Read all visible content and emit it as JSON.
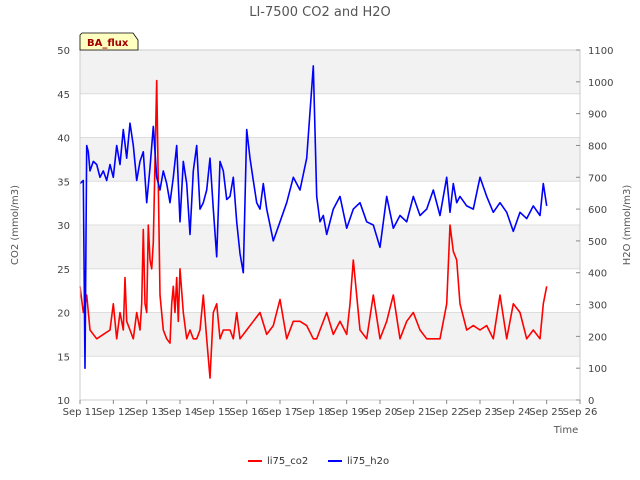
{
  "chart_data": {
    "type": "line",
    "title": "LI-7500 CO2 and H2O",
    "xlabel": "Time",
    "ylabel": "CO2 (mmol/m3)",
    "y2label": "H2O (mmol/m3)",
    "badge": "BA_flux",
    "xlim": [
      11,
      26
    ],
    "ylim": [
      10,
      50
    ],
    "y2lim": [
      0,
      1100
    ],
    "x_ticks": [
      11,
      12,
      13,
      14,
      15,
      16,
      17,
      18,
      19,
      20,
      21,
      22,
      23,
      24,
      25,
      26
    ],
    "x_tick_labels": [
      "Sep 11",
      "Sep 12",
      "Sep 13",
      "Sep 14",
      "Sep 15",
      "Sep 16",
      "Sep 17",
      "Sep 18",
      "Sep 19",
      "Sep 20",
      "Sep 21",
      "Sep 22",
      "Sep 23",
      "Sep 24",
      "Sep 25",
      "Sep 26"
    ],
    "y_ticks": [
      10,
      15,
      20,
      25,
      30,
      35,
      40,
      45,
      50
    ],
    "y2_ticks": [
      0,
      100,
      200,
      300,
      400,
      500,
      600,
      700,
      800,
      900,
      1000,
      1100
    ],
    "legend_position": "bottom-center",
    "series": [
      {
        "name": "li75_co2",
        "color": "#ff0000",
        "axis": "left",
        "x": [
          11.0,
          11.1,
          11.2,
          11.3,
          11.5,
          11.7,
          11.9,
          12.0,
          12.1,
          12.2,
          12.3,
          12.35,
          12.4,
          12.5,
          12.6,
          12.7,
          12.8,
          12.85,
          12.9,
          12.95,
          13.0,
          13.05,
          13.1,
          13.15,
          13.2,
          13.3,
          13.4,
          13.5,
          13.6,
          13.7,
          13.75,
          13.8,
          13.85,
          13.9,
          13.95,
          14.0,
          14.1,
          14.2,
          14.3,
          14.4,
          14.5,
          14.6,
          14.7,
          14.8,
          14.9,
          15.0,
          15.1,
          15.2,
          15.3,
          15.4,
          15.5,
          15.6,
          15.7,
          15.8,
          16.0,
          16.2,
          16.4,
          16.6,
          16.8,
          17.0,
          17.2,
          17.4,
          17.6,
          17.8,
          18.0,
          18.1,
          18.2,
          18.4,
          18.6,
          18.8,
          19.0,
          19.1,
          19.2,
          19.4,
          19.6,
          19.8,
          20.0,
          20.2,
          20.4,
          20.6,
          20.8,
          21.0,
          21.2,
          21.4,
          21.6,
          21.8,
          22.0,
          22.1,
          22.2,
          22.3,
          22.4,
          22.6,
          22.8,
          23.0,
          23.2,
          23.4,
          23.6,
          23.8,
          24.0,
          24.2,
          24.4,
          24.6,
          24.8,
          24.9,
          25.0
        ],
        "values": [
          23,
          20,
          22,
          18,
          17,
          17.5,
          18,
          21,
          17,
          20,
          18,
          24,
          19,
          18,
          17,
          20,
          18,
          21,
          29.5,
          21,
          20,
          30,
          26,
          25,
          28,
          46.5,
          22,
          18,
          17,
          16.5,
          21,
          23,
          20,
          24,
          19,
          25,
          20,
          17,
          18,
          17,
          17,
          18,
          22,
          17,
          12.5,
          20,
          21,
          17,
          18,
          18,
          18,
          17,
          20,
          17,
          18,
          19,
          20,
          17.5,
          18.5,
          21.5,
          17,
          19,
          19,
          18.5,
          17,
          17,
          18,
          20,
          17.5,
          19,
          17.5,
          21,
          26,
          18,
          17,
          22,
          17,
          19,
          22,
          17,
          19,
          20,
          18,
          17,
          17,
          17,
          21,
          30,
          27,
          26,
          21,
          18,
          18.5,
          18,
          18.5,
          17,
          22,
          17,
          21,
          20,
          17,
          18,
          17,
          21,
          23
        ]
      },
      {
        "name": "li75_h2o",
        "color": "#0000ff",
        "axis": "right",
        "x": [
          11.0,
          11.1,
          11.15,
          11.2,
          11.25,
          11.3,
          11.4,
          11.5,
          11.6,
          11.7,
          11.8,
          11.9,
          12.0,
          12.1,
          12.2,
          12.3,
          12.4,
          12.5,
          12.6,
          12.7,
          12.8,
          12.9,
          13.0,
          13.1,
          13.2,
          13.3,
          13.4,
          13.5,
          13.6,
          13.7,
          13.8,
          13.9,
          14.0,
          14.1,
          14.2,
          14.3,
          14.4,
          14.5,
          14.6,
          14.7,
          14.8,
          14.9,
          15.0,
          15.1,
          15.2,
          15.3,
          15.4,
          15.5,
          15.6,
          15.7,
          15.8,
          15.9,
          16.0,
          16.1,
          16.2,
          16.3,
          16.4,
          16.5,
          16.6,
          16.8,
          17.0,
          17.2,
          17.4,
          17.6,
          17.8,
          18.0,
          18.1,
          18.2,
          18.3,
          18.4,
          18.6,
          18.8,
          19.0,
          19.2,
          19.4,
          19.6,
          19.8,
          20.0,
          20.2,
          20.4,
          20.6,
          20.8,
          21.0,
          21.2,
          21.4,
          21.6,
          21.8,
          22.0,
          22.1,
          22.2,
          22.3,
          22.4,
          22.6,
          22.8,
          23.0,
          23.2,
          23.4,
          23.6,
          23.8,
          24.0,
          24.2,
          24.4,
          24.6,
          24.8,
          24.9,
          25.0
        ],
        "values": [
          680,
          690,
          100,
          800,
          780,
          720,
          750,
          740,
          700,
          720,
          690,
          740,
          700,
          800,
          740,
          850,
          760,
          870,
          800,
          690,
          750,
          780,
          620,
          730,
          860,
          700,
          660,
          720,
          680,
          620,
          700,
          800,
          560,
          750,
          680,
          520,
          720,
          800,
          600,
          620,
          660,
          760,
          600,
          450,
          750,
          720,
          630,
          640,
          700,
          560,
          460,
          400,
          850,
          760,
          690,
          620,
          600,
          680,
          600,
          500,
          560,
          620,
          700,
          660,
          760,
          1050,
          640,
          560,
          580,
          520,
          600,
          640,
          540,
          600,
          620,
          560,
          550,
          480,
          640,
          540,
          580,
          560,
          640,
          580,
          600,
          660,
          580,
          700,
          590,
          680,
          620,
          640,
          610,
          600,
          700,
          640,
          590,
          620,
          590,
          530,
          590,
          570,
          610,
          580,
          680,
          610
        ]
      }
    ]
  }
}
